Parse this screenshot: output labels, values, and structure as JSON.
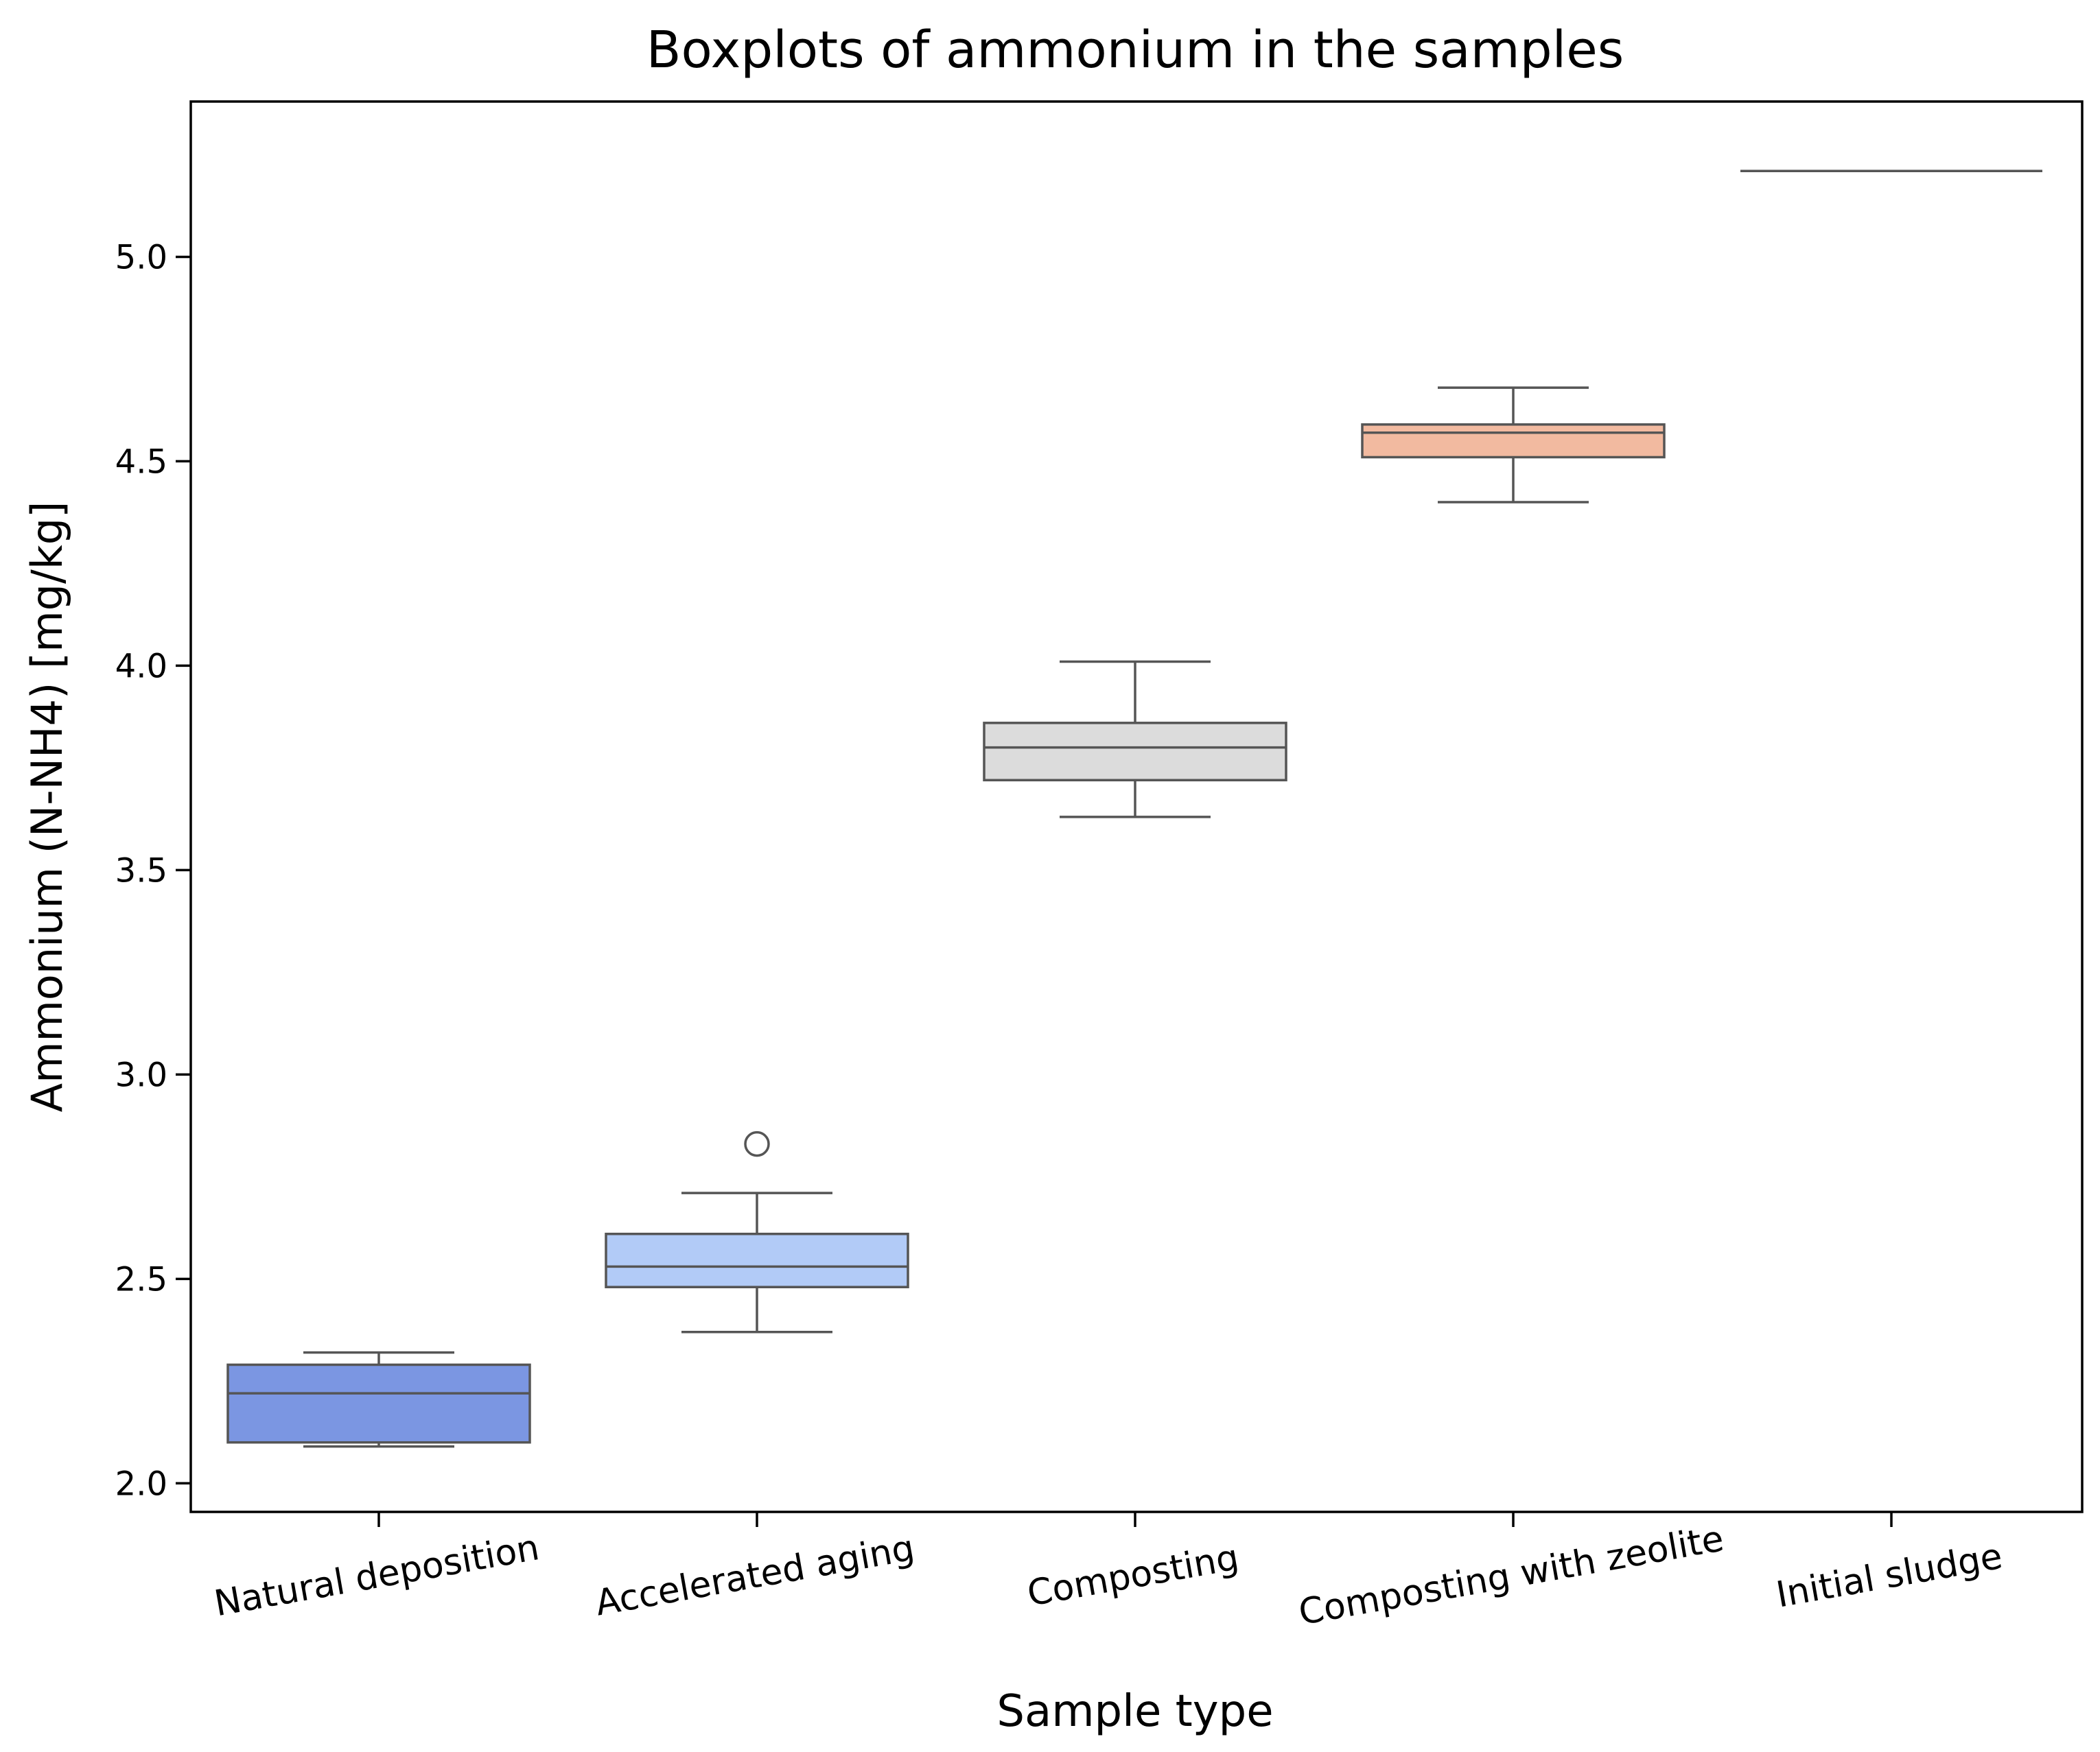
{
  "chart_data": {
    "type": "box",
    "title": "Boxplots of ammonium in the samples",
    "xlabel": "Sample type",
    "ylabel": "Ammonium (N-NH4) [mg/kg]",
    "ylim": [
      1.93,
      5.38
    ],
    "yticks": [
      2.0,
      2.5,
      3.0,
      3.5,
      4.0,
      4.5,
      5.0
    ],
    "ytick_labels": [
      "2.0",
      "2.5",
      "3.0",
      "3.5",
      "4.0",
      "4.5",
      "5.0"
    ],
    "categories": [
      "Natural deposition",
      "Accelerated aging",
      "Composting",
      "Composting with zeolite",
      "Initial sludge"
    ],
    "boxes": [
      {
        "name": "Natural deposition",
        "whisker_low": 2.09,
        "q1": 2.1,
        "median": 2.22,
        "q3": 2.29,
        "whisker_high": 2.32,
        "outliers": [],
        "color": "#7b96e2"
      },
      {
        "name": "Accelerated aging",
        "whisker_low": 2.37,
        "q1": 2.48,
        "median": 2.53,
        "q3": 2.61,
        "whisker_high": 2.71,
        "outliers": [
          2.83
        ],
        "color": "#b2cbf7"
      },
      {
        "name": "Composting",
        "whisker_low": 3.63,
        "q1": 3.72,
        "median": 3.8,
        "q3": 3.86,
        "whisker_high": 4.01,
        "outliers": [],
        "color": "#dcdcdc"
      },
      {
        "name": "Composting with zeolite",
        "whisker_low": 4.4,
        "q1": 4.51,
        "median": 4.57,
        "q3": 4.59,
        "whisker_high": 4.68,
        "outliers": [],
        "color": "#f2baa0"
      },
      {
        "name": "Initial sludge",
        "whisker_low": 5.21,
        "q1": 5.21,
        "median": 5.21,
        "q3": 5.21,
        "whisker_high": 5.21,
        "outliers": [],
        "color": "#e7826c"
      }
    ],
    "line_color": "#555555",
    "grid": false,
    "legend": "none"
  }
}
